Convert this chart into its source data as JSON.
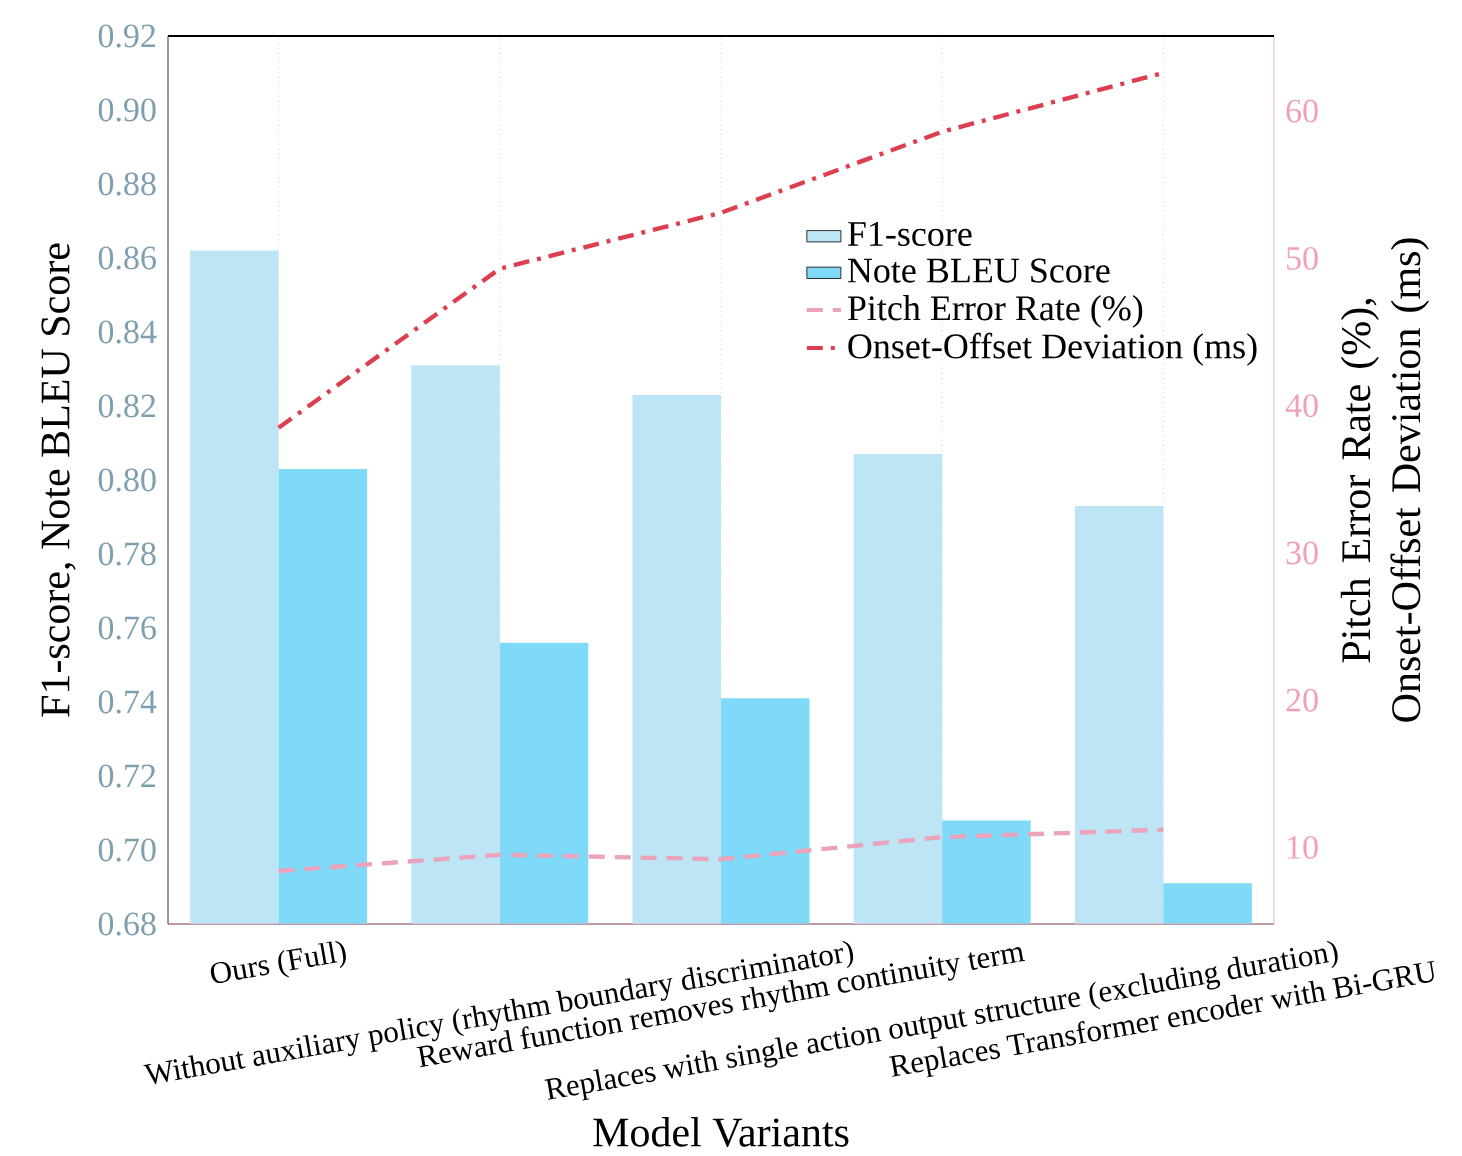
{
  "chart_data": {
    "type": "bar",
    "categories": [
      "Ours (Full)",
      "Without auxiliary policy (rhythm boundary discriminator)",
      "Reward function removes rhythm continuity term",
      "Replaces with single action output structure (excluding duration)",
      "Replaces Transformer encoder with Bi-GRU"
    ],
    "xlabel": "Model Variants",
    "ylabel": "F1-score, Note BLEU Score",
    "y2label": "Pitch Error Rate (%), Onset-Offset Deviation (ms)",
    "series": [
      {
        "name": "F1-score",
        "color": "#bde5f5",
        "values": [
          0.862,
          0.831,
          0.823,
          0.807,
          0.793
        ]
      },
      {
        "name": "Note BLEU Score",
        "color": "#7fd9f8",
        "values": [
          0.803,
          0.756,
          0.741,
          0.708,
          0.691
        ]
      },
      {
        "name": "Pitch Error Rate (%)",
        "type": "line",
        "axis": "y2",
        "line_style": "dashed",
        "color": "#eba3bb",
        "values": [
          8.4,
          9.5,
          9.2,
          10.7,
          11.2
        ]
      },
      {
        "name": "Onset-Offset Deviation (ms)",
        "type": "line",
        "axis": "y2",
        "line_style": "dashdot",
        "color": "#dc3f4f",
        "values": [
          38.5,
          49.3,
          53.1,
          58.6,
          62.6
        ]
      }
    ],
    "ylim": [
      0.68,
      0.92
    ],
    "yticks": [
      {
        "value": 0.68,
        "label": "0.68"
      },
      {
        "value": 0.7,
        "label": "0.70"
      },
      {
        "value": 0.72,
        "label": "0.72"
      },
      {
        "value": 0.74,
        "label": "0.74"
      },
      {
        "value": 0.76,
        "label": "0.76"
      },
      {
        "value": 0.78,
        "label": "0.78"
      },
      {
        "value": 0.8,
        "label": "0.80"
      },
      {
        "value": 0.82,
        "label": "0.82"
      },
      {
        "value": 0.84,
        "label": "0.84"
      },
      {
        "value": 0.86,
        "label": "0.86"
      },
      {
        "value": 0.88,
        "label": "0.88"
      },
      {
        "value": 0.9,
        "label": "0.90"
      },
      {
        "value": 0.92,
        "label": "0.92"
      }
    ],
    "y2lim": [
      4.8,
      65.1
    ],
    "y2ticks": [
      10,
      20,
      30,
      40,
      50,
      60
    ],
    "grid": "x",
    "legend": "top right"
  }
}
